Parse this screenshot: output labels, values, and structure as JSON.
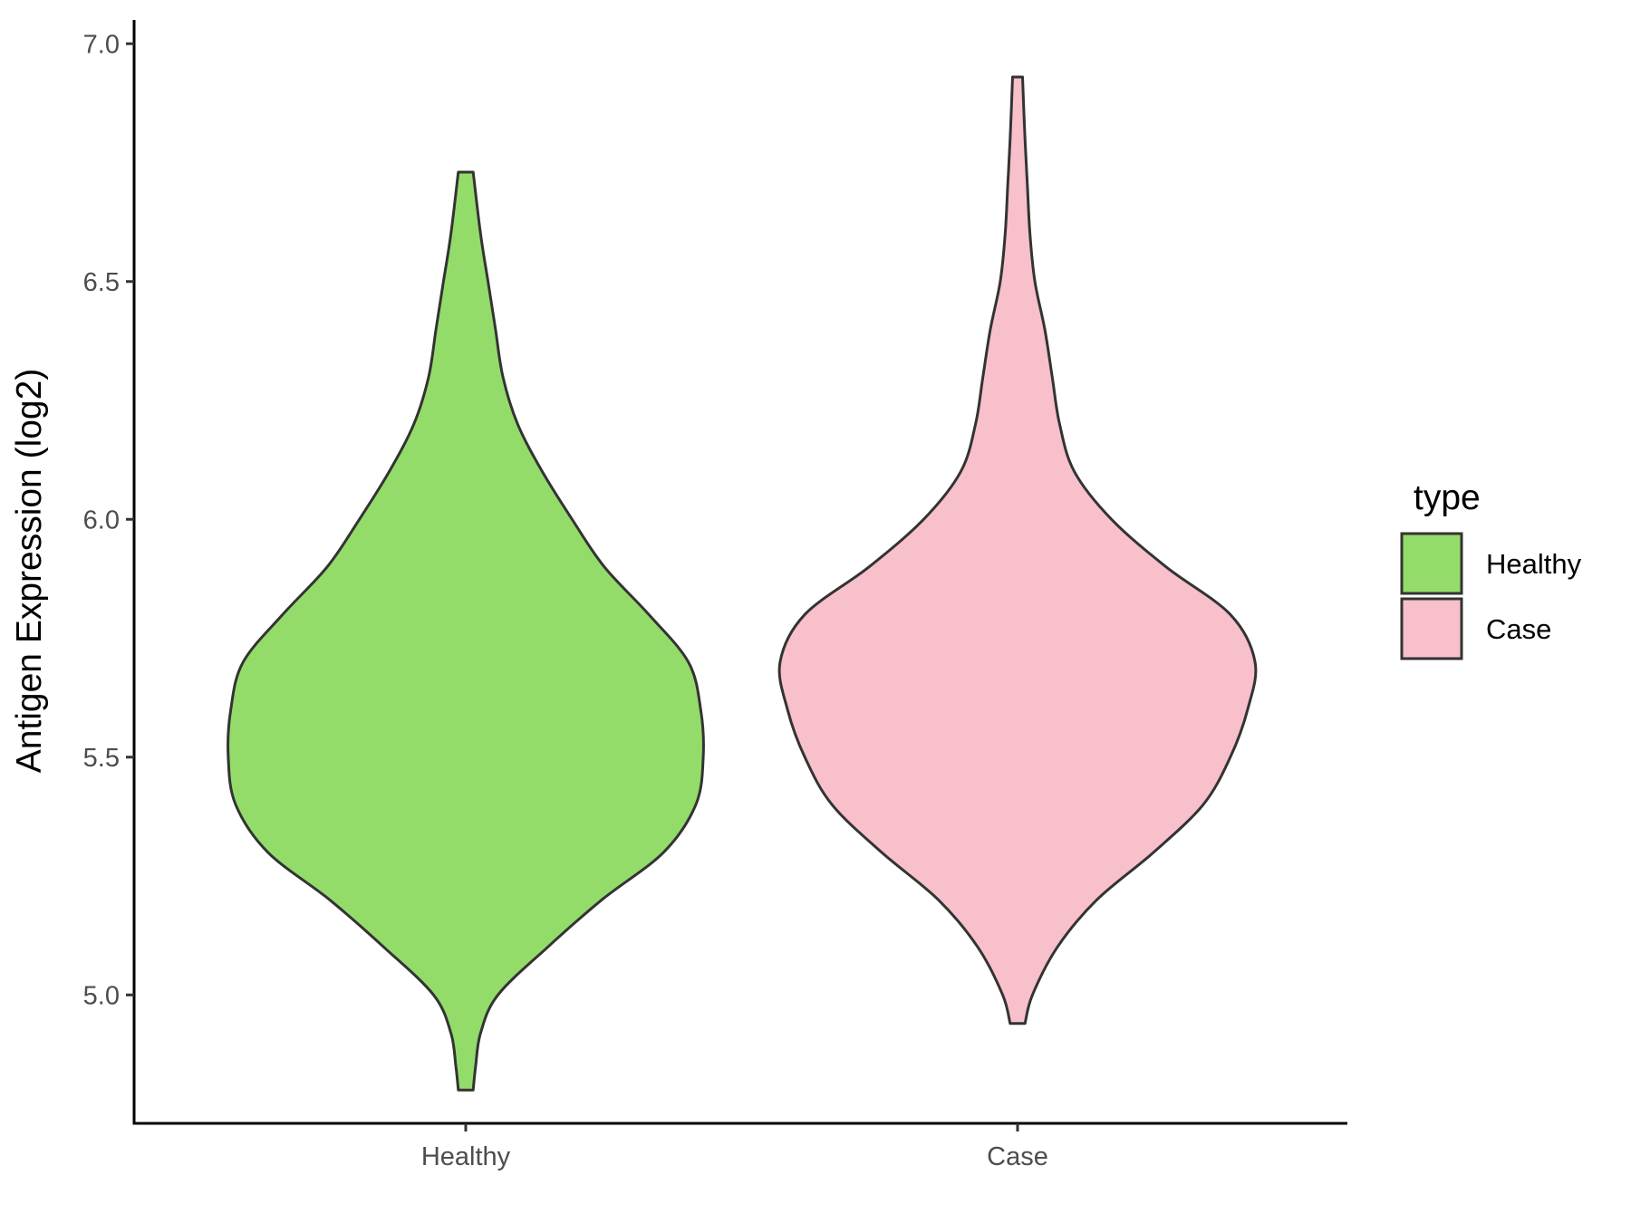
{
  "chart_data": {
    "type": "violin",
    "title": "",
    "xlabel": "",
    "ylabel": "Antigen Expression (log2)",
    "ylim": [
      4.73,
      7.05
    ],
    "yticks": [
      5.0,
      5.5,
      6.0,
      6.5,
      7.0
    ],
    "ytick_labels": [
      "5.0",
      "5.5",
      "6.0",
      "6.5",
      "7.0"
    ],
    "categories": [
      "Healthy",
      "Case"
    ],
    "grid": false,
    "legend": {
      "title": "type",
      "position": "right",
      "entries": [
        {
          "label": "Healthy",
          "color": "#93dc6a"
        },
        {
          "label": "Case",
          "color": "#f7c0cb"
        }
      ]
    },
    "series": [
      {
        "name": "Healthy",
        "color": "#93dc6a",
        "min": 4.8,
        "max": 6.73,
        "density_profile": [
          [
            4.8,
            0.03
          ],
          [
            4.85,
            0.04
          ],
          [
            4.92,
            0.06
          ],
          [
            5.0,
            0.13
          ],
          [
            5.1,
            0.33
          ],
          [
            5.2,
            0.55
          ],
          [
            5.3,
            0.8
          ],
          [
            5.4,
            0.93
          ],
          [
            5.5,
            0.96
          ],
          [
            5.6,
            0.95
          ],
          [
            5.7,
            0.9
          ],
          [
            5.8,
            0.74
          ],
          [
            5.9,
            0.56
          ],
          [
            6.0,
            0.43
          ],
          [
            6.1,
            0.31
          ],
          [
            6.2,
            0.21
          ],
          [
            6.3,
            0.15
          ],
          [
            6.4,
            0.12
          ],
          [
            6.5,
            0.09
          ],
          [
            6.6,
            0.06
          ],
          [
            6.73,
            0.03
          ]
        ]
      },
      {
        "name": "Case",
        "color": "#f7c0cb",
        "min": 4.94,
        "max": 6.93,
        "density_profile": [
          [
            4.94,
            0.03
          ],
          [
            5.0,
            0.06
          ],
          [
            5.1,
            0.16
          ],
          [
            5.2,
            0.32
          ],
          [
            5.3,
            0.55
          ],
          [
            5.4,
            0.75
          ],
          [
            5.5,
            0.86
          ],
          [
            5.6,
            0.93
          ],
          [
            5.7,
            0.96
          ],
          [
            5.8,
            0.86
          ],
          [
            5.9,
            0.6
          ],
          [
            6.0,
            0.38
          ],
          [
            6.1,
            0.23
          ],
          [
            6.2,
            0.17
          ],
          [
            6.3,
            0.14
          ],
          [
            6.4,
            0.11
          ],
          [
            6.5,
            0.07
          ],
          [
            6.6,
            0.05
          ],
          [
            6.7,
            0.04
          ],
          [
            6.8,
            0.03
          ],
          [
            6.93,
            0.02
          ]
        ]
      }
    ]
  }
}
